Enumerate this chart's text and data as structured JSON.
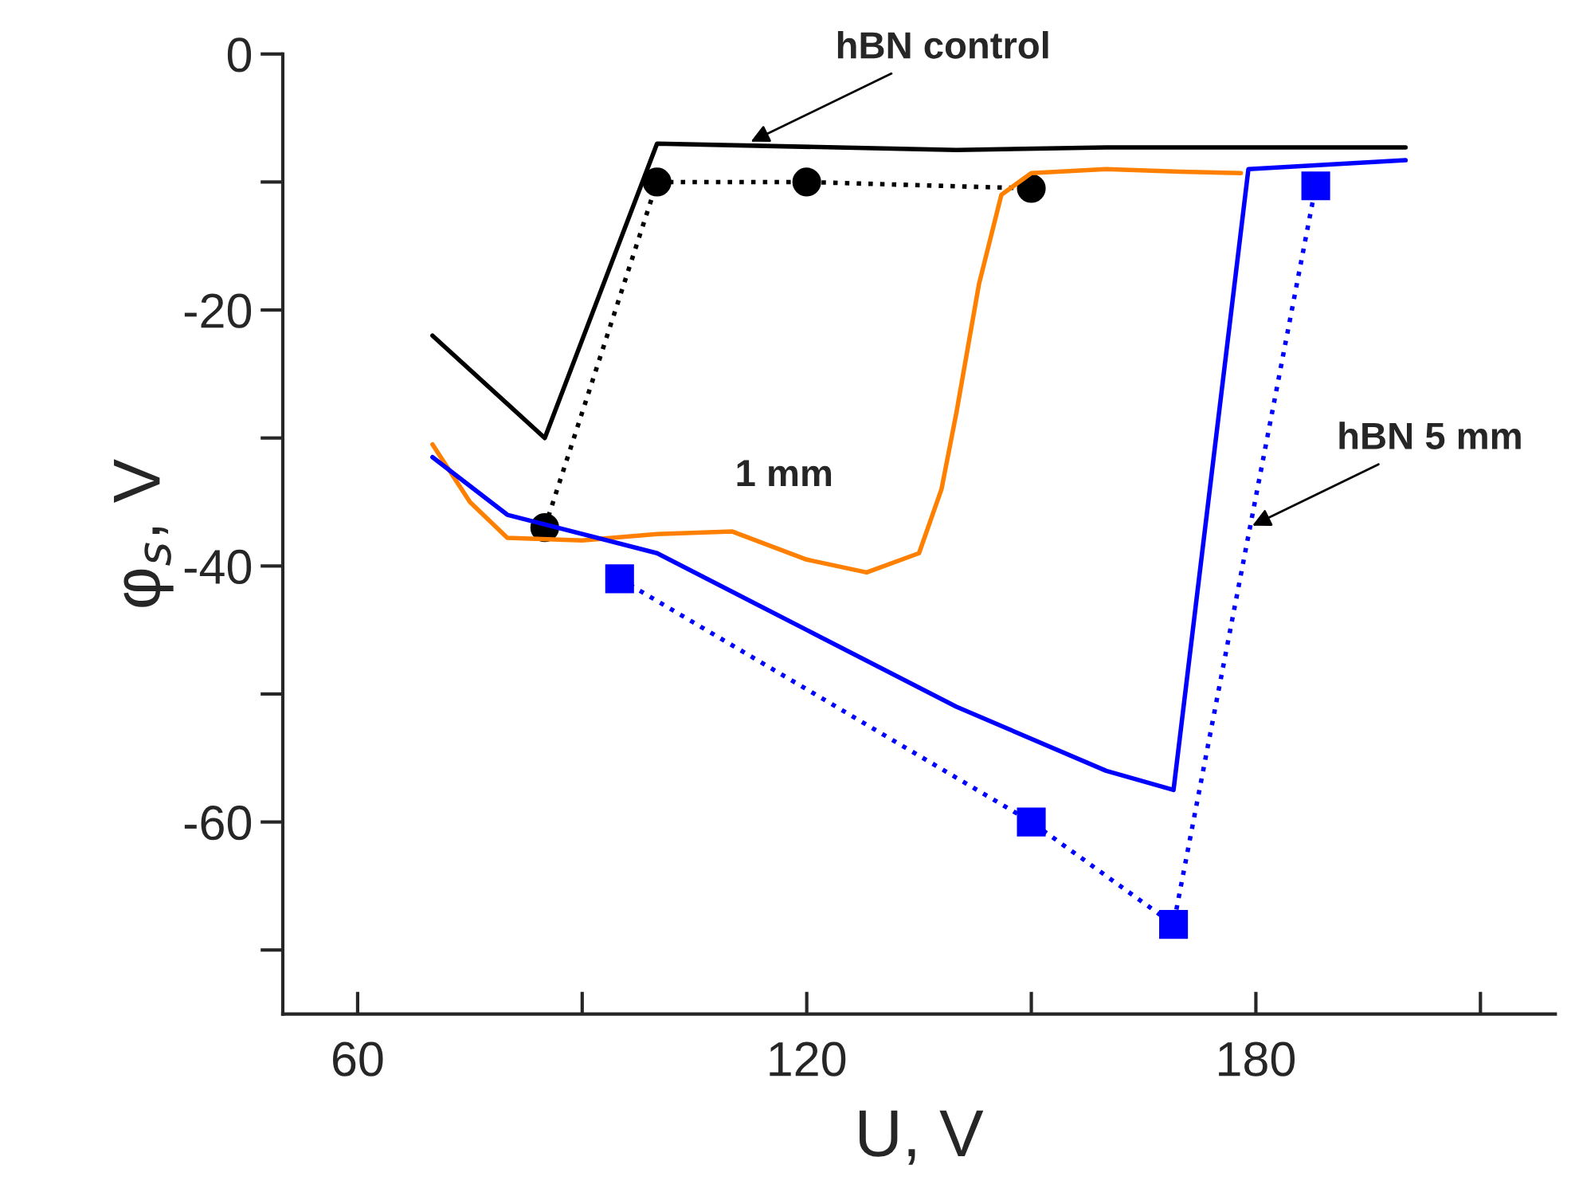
{
  "chart_data": {
    "type": "line",
    "xlabel": "U, V",
    "ylabel": "φ$_{s}$, V",
    "xlim": [
      50,
      220
    ],
    "ylim": [
      -75,
      0
    ],
    "xticks": [
      60,
      {
        "value": 90,
        "label": null
      },
      120,
      {
        "value": 150,
        "label": null
      },
      180,
      {
        "value": 210,
        "label": null
      }
    ],
    "yticks": [
      0,
      {
        "value": -10,
        "label": null
      },
      -20,
      {
        "value": -30,
        "label": null
      },
      -40,
      {
        "value": -50,
        "label": null
      },
      -60,
      {
        "value": -70,
        "label": null
      }
    ],
    "grid": false,
    "legend": false,
    "series": [
      {
        "color": "#000000",
        "marker": "none",
        "line_style": "solid",
        "x": [
          70,
          85,
          100,
          140,
          160,
          200
        ],
        "values": [
          -22,
          -30,
          -7,
          -7.5,
          -7.3,
          -7.3
        ]
      },
      {
        "color": "#000000",
        "marker": "circle",
        "line_style": "dotted",
        "x": [
          85,
          100,
          120,
          150
        ],
        "values": [
          -37,
          -10,
          -10,
          -10.5
        ]
      },
      {
        "color": "#ff8000",
        "marker": "none",
        "line_style": "solid",
        "x": [
          70,
          75,
          80,
          90,
          100,
          110,
          120,
          128,
          135,
          138,
          140,
          143,
          146,
          150,
          160,
          170,
          178
        ],
        "values": [
          -30.5,
          -35,
          -37.8,
          -38,
          -37.5,
          -37.3,
          -39.5,
          -40.5,
          -39,
          -34,
          -28,
          -18,
          -11,
          -9.3,
          -9,
          -9.2,
          -9.3
        ]
      },
      {
        "color": "#0000ff",
        "marker": "none",
        "line_style": "solid",
        "x": [
          70,
          80,
          100,
          120,
          140,
          160,
          169,
          179,
          200
        ],
        "values": [
          -31.5,
          -36,
          -39,
          -45,
          -51,
          -56,
          -57.5,
          -9,
          -8.3
        ]
      },
      {
        "color": "#0000ff",
        "marker": "square",
        "line_style": "dotted",
        "x": [
          95,
          150,
          169,
          188
        ],
        "values": [
          -41,
          -60,
          -68,
          -10.3
        ]
      }
    ],
    "annotations": [
      {
        "text": "hBN control",
        "x": 112,
        "y": -7
      },
      "1 mm",
      {
        "text": "hBN 5 mm",
        "x": 179,
        "y": -37
      }
    ]
  }
}
